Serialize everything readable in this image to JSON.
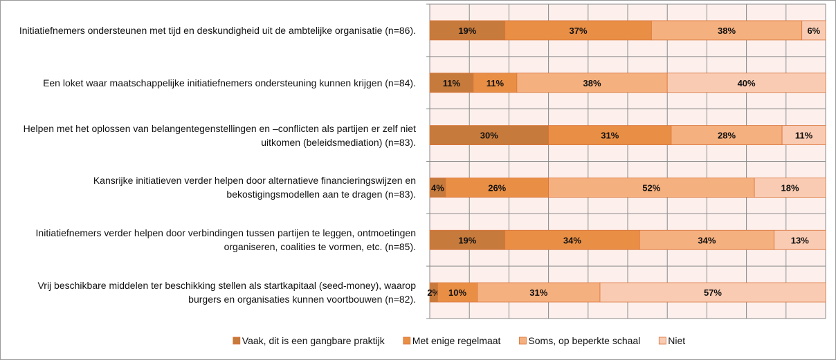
{
  "chart_data": {
    "type": "stacked-barh",
    "categories": [
      "Initiatiefnemers ondersteunen met tijd en deskundigheid uit de ambtelijke organisatie (n=86).",
      "Een loket waar maatschappelijke initiatiefnemers ondersteuning kunnen krijgen (n=84).",
      "Helpen met het oplossen van belangentegenstellingen en –conflicten als partijen er zelf niet uitkomen (beleidsmediation) (n=83).",
      "Kansrijke initiatieven verder helpen door alternatieve financieringswijzen en bekostigingsmodellen aan te dragen (n=83).",
      "Initiatiefnemers verder helpen door verbindingen tussen partijen te leggen, ontmoetingen organiseren, coalities te vormen, etc. (n=85).",
      "Vrij beschikbare middelen ter beschikking stellen als startkapitaal (seed-money), waarop burgers en organisaties kunnen voortbouwen (n=82)."
    ],
    "series": [
      {
        "name": "Vaak, dit is een gangbare praktijk",
        "color": "#c67a3c",
        "values": [
          19,
          11,
          30,
          4,
          19,
          2
        ],
        "value_labels": [
          "19%",
          "11%",
          "30%",
          "4%",
          "19%",
          "2%"
        ]
      },
      {
        "name": "Met enige regelmaat",
        "color": "#e98f45",
        "values": [
          37,
          11,
          31,
          26,
          34,
          10
        ],
        "value_labels": [
          "37%",
          "11%",
          "31%",
          "26%",
          "34%",
          "10%"
        ]
      },
      {
        "name": "Soms, op beperkte schaal",
        "color": "#f5b07f",
        "values": [
          38,
          38,
          28,
          52,
          34,
          31
        ],
        "value_labels": [
          "38%",
          "38%",
          "28%",
          "52%",
          "34%",
          "31%"
        ]
      },
      {
        "name": "Niet",
        "color": "#f9cbb2",
        "values": [
          6,
          40,
          11,
          18,
          13,
          57
        ],
        "value_labels": [
          "6%",
          "40%",
          "11%",
          "18%",
          "13%",
          "57%"
        ]
      }
    ],
    "xlim": [
      0,
      100
    ],
    "xticks": [
      0,
      10,
      20,
      30,
      40,
      50,
      60,
      70,
      80,
      90,
      100
    ],
    "grid": true,
    "legend": "bottom"
  }
}
